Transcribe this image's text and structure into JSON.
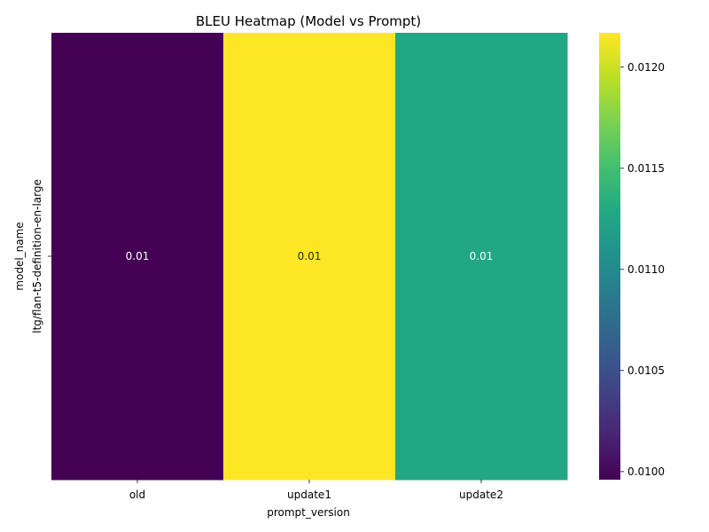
{
  "chart_data": {
    "type": "heatmap",
    "title": "BLEU Heatmap (Model vs Prompt)",
    "xlabel": "prompt_version",
    "ylabel": "model_name",
    "x_categories": [
      "old",
      "update1",
      "update2"
    ],
    "y_categories": [
      "ltg/flan-t5-definition-en-large"
    ],
    "values": [
      [
        0.00996,
        0.01217,
        0.01128
      ]
    ],
    "annotations": [
      [
        "0.01",
        "0.01",
        "0.01"
      ]
    ],
    "colormap": "viridis",
    "colorbar": {
      "range": [
        0.00996,
        0.01217
      ],
      "ticks": [
        0.01,
        0.0105,
        0.011,
        0.0115,
        0.012
      ],
      "tick_labels": [
        "0.0100",
        "0.0105",
        "0.0110",
        "0.0115",
        "0.0120"
      ]
    },
    "colors": {
      "viridis_low": "#440154",
      "viridis_mid": "#21918c",
      "viridis_high": "#fde725",
      "annotation_on_dark": "#ffffff",
      "annotation_on_light": "#262626"
    }
  }
}
